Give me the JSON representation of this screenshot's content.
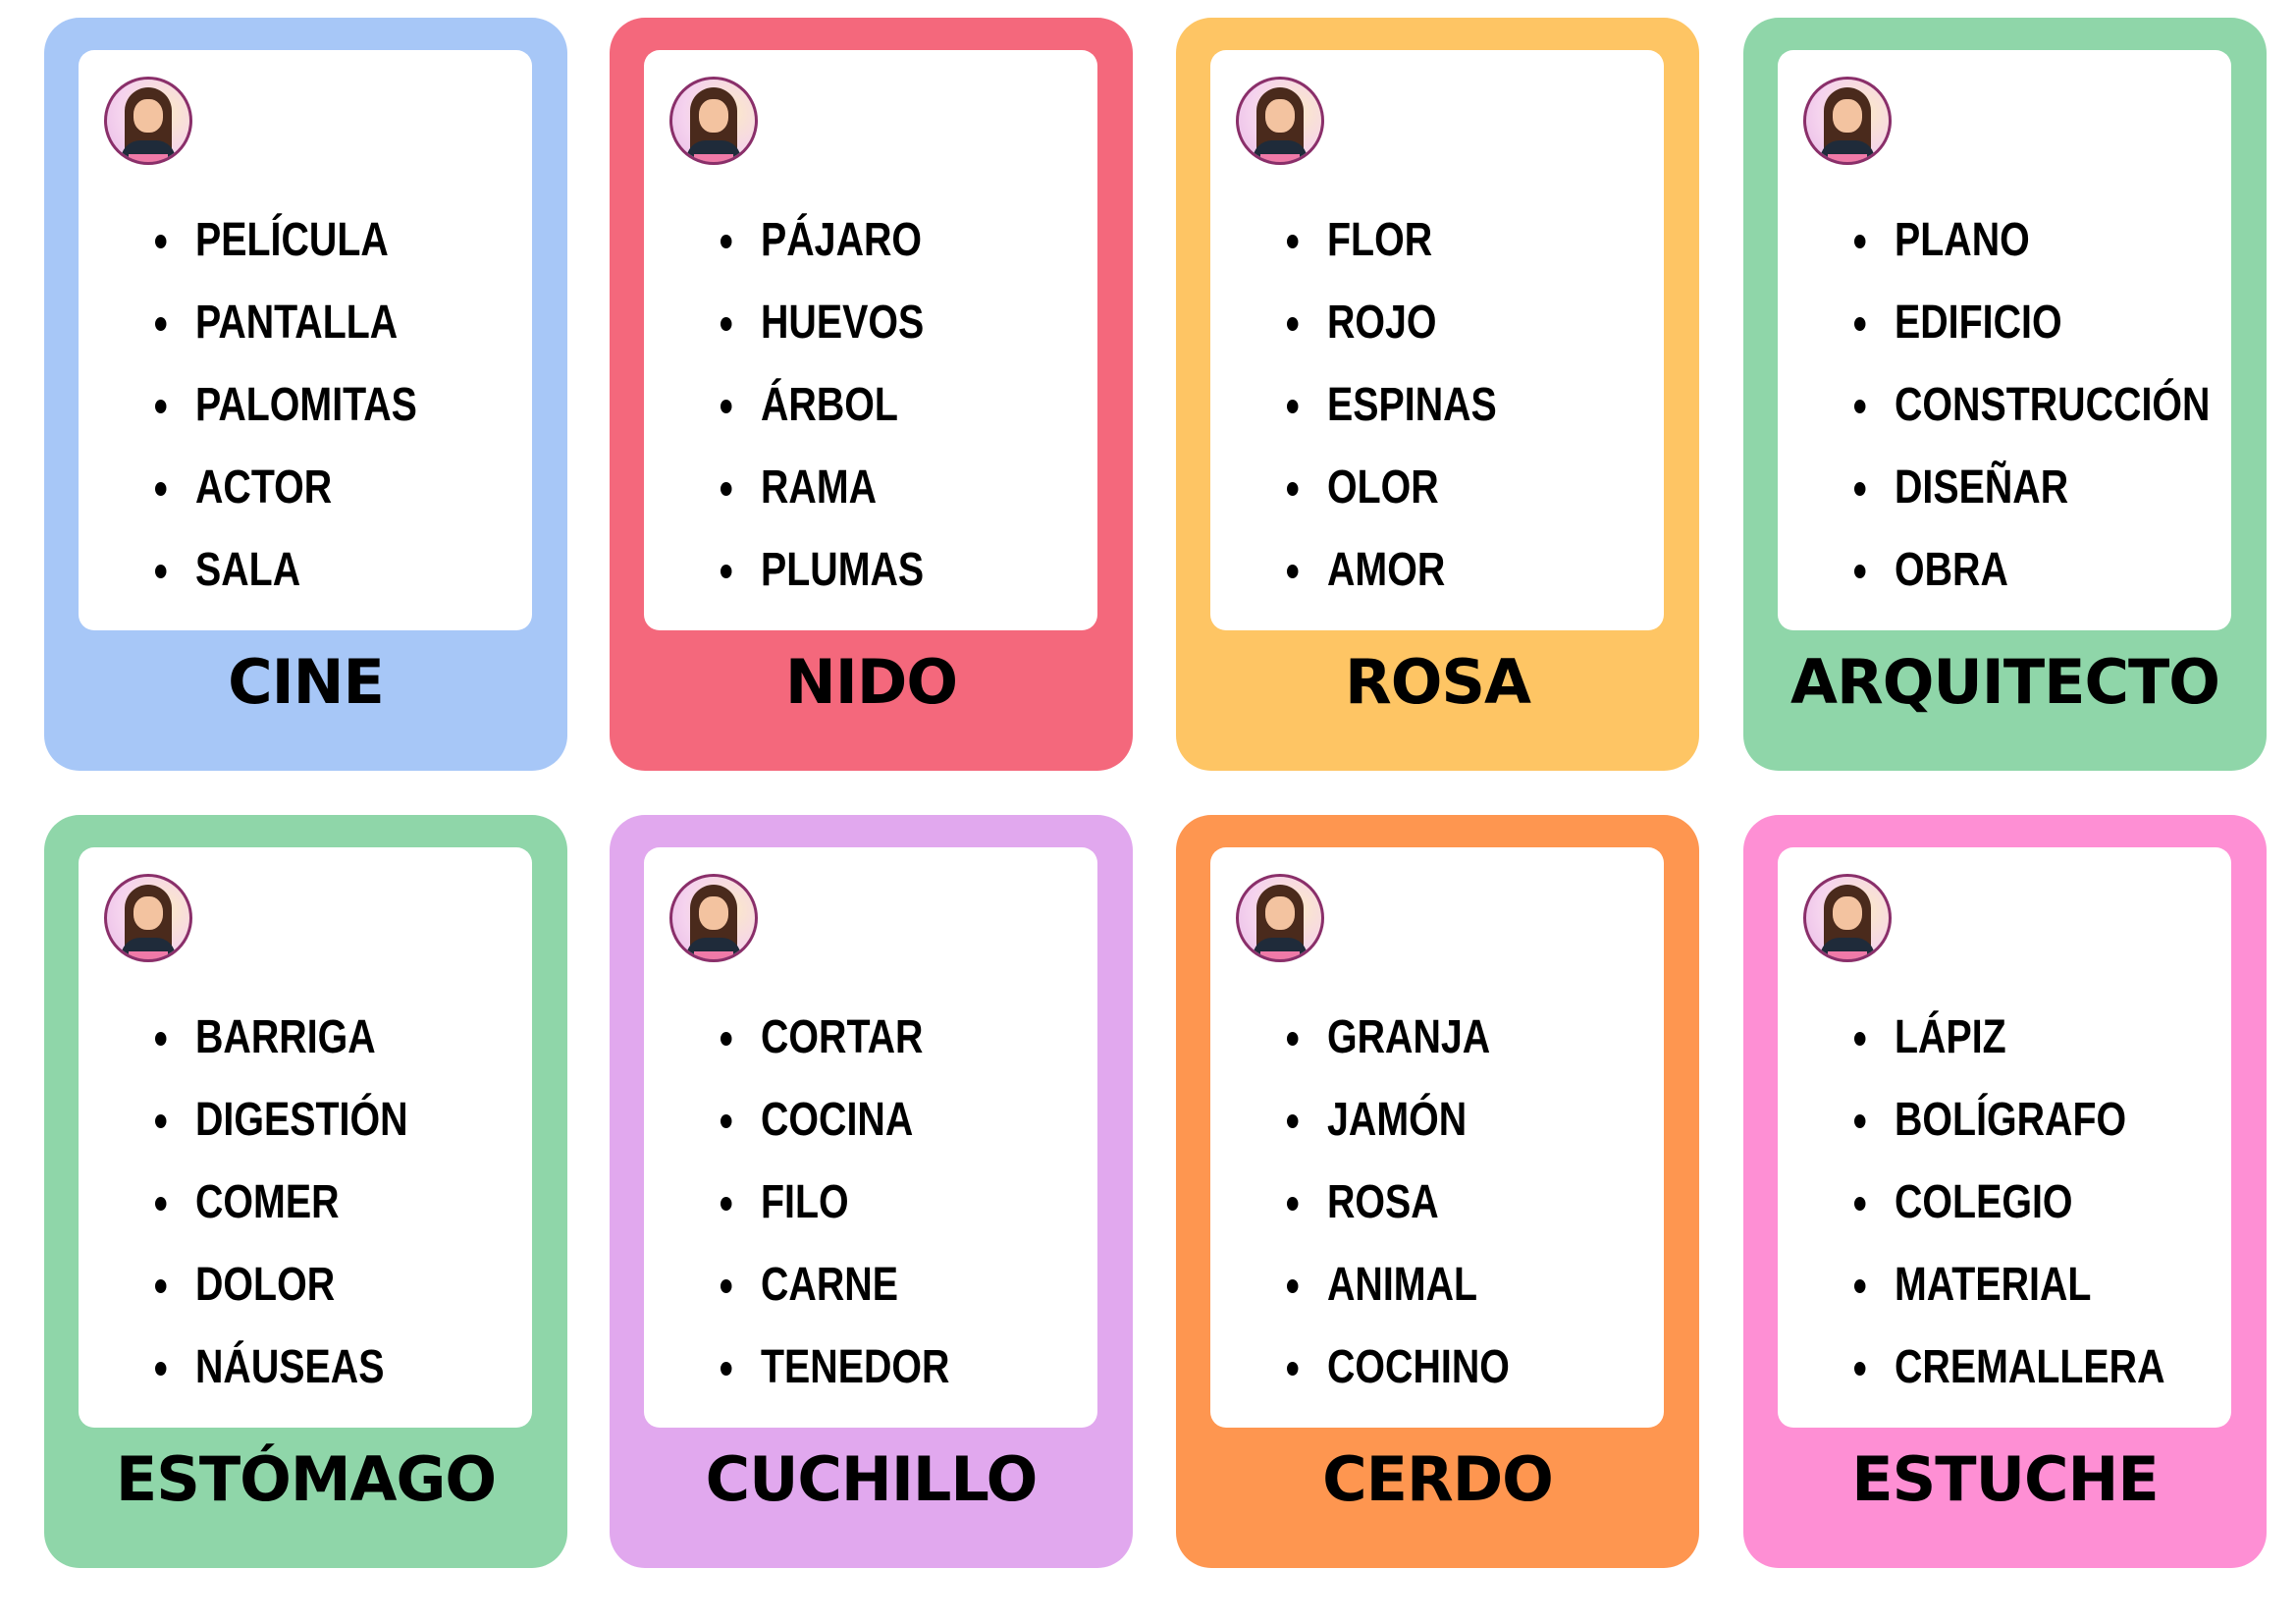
{
  "cards": [
    {
      "title": "CINE",
      "color": "#a7c7f7",
      "words": [
        "PELÍCULA",
        "PANTALLA",
        "PALOMITAS",
        "ACTOR",
        "SALA"
      ]
    },
    {
      "title": "NIDO",
      "color": "#f4687c",
      "words": [
        "PÁJARO",
        "HUEVOS",
        "ÁRBOL",
        "RAMA",
        "PLUMAS"
      ]
    },
    {
      "title": "ROSA",
      "color": "#fec564",
      "words": [
        "FLOR",
        "ROJO",
        "ESPINAS",
        "OLOR",
        "AMOR"
      ]
    },
    {
      "title": "ARQUITECTO",
      "color": "#8fd6a9",
      "words": [
        "PLANO",
        "EDIFICIO",
        "CONSTRUCCIÓN",
        "DISEÑAR",
        "OBRA"
      ]
    },
    {
      "title": "ESTÓMAGO",
      "color": "#8fd6a9",
      "words": [
        "BARRIGA",
        "DIGESTIÓN",
        "COMER",
        "DOLOR",
        "NÁUSEAS"
      ]
    },
    {
      "title": "CUCHILLO",
      "color": "#e1a8ee",
      "words": [
        "CORTAR",
        "COCINA",
        "FILO",
        "CARNE",
        "TENEDOR"
      ]
    },
    {
      "title": "CERDO",
      "color": "#fe9650",
      "words": [
        "GRANJA",
        "JAMÓN",
        "ROSA",
        "ANIMAL",
        "COCHINO"
      ]
    },
    {
      "title": "ESTUCHE",
      "color": "#fe8fd4",
      "words": [
        "LÁPIZ",
        "BOLÍGRAFO",
        "COLEGIO",
        "MATERIAL",
        "CREMALLERA"
      ]
    }
  ]
}
